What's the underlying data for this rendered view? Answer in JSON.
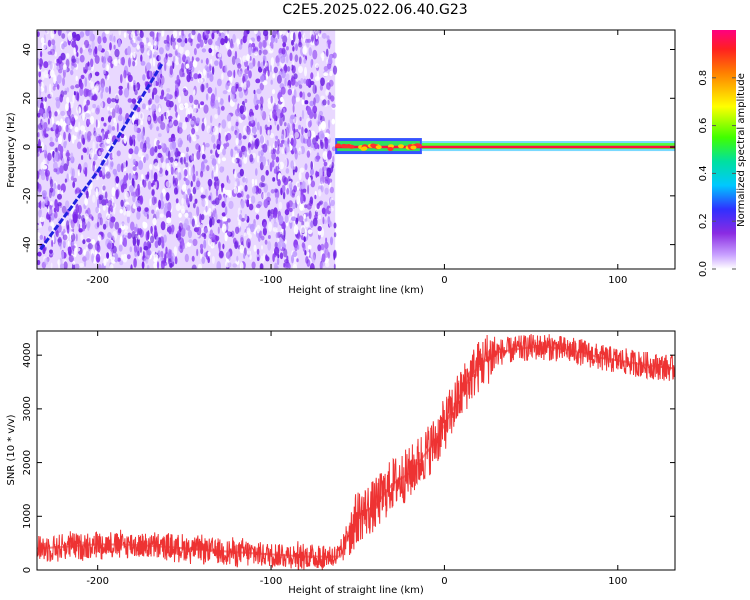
{
  "title": "C2E5.2025.022.06.40.G23",
  "chart_data": [
    {
      "type": "heatmap",
      "xlabel": "Height of straight line (km)",
      "ylabel": "Frequency (Hz)",
      "xlim": [
        -235,
        133
      ],
      "ylim": [
        -50,
        48
      ],
      "xticks": [
        -200,
        -100,
        0,
        100
      ],
      "yticks": [
        -40,
        -20,
        0,
        20,
        40
      ],
      "noise_region_x": [
        -235,
        -63
      ],
      "signal_region_x": [
        -63,
        133
      ],
      "diagonal_track": [
        {
          "x": -233,
          "y": -42
        },
        {
          "x": -227,
          "y": -36
        },
        {
          "x": -200,
          "y": -10
        },
        {
          "x": -180,
          "y": 14
        },
        {
          "x": -163,
          "y": 34
        }
      ],
      "signal_line": {
        "frequency": 0,
        "x_start": -63,
        "x_end": 133
      },
      "colorbar": {
        "label": "Normalized spectral amplitude",
        "ticks": [
          0.0,
          0.2,
          0.4,
          0.6,
          0.8
        ],
        "tick_labels": [
          "0.0",
          "0.2",
          "0.4",
          "0.6",
          "0.8"
        ],
        "range": [
          0,
          1
        ]
      },
      "grid": false
    },
    {
      "type": "line",
      "xlabel": "Height of straight line (km)",
      "ylabel": "SNR (10 * v/v)",
      "xlim": [
        -235,
        133
      ],
      "ylim": [
        0,
        4450
      ],
      "xticks": [
        -200,
        -100,
        0,
        100
      ],
      "yticks": [
        0,
        1000,
        2000,
        3000,
        4000
      ],
      "color": "#ee3333",
      "series": [
        {
          "x": [
            -235,
            -220,
            -200,
            -180,
            -160,
            -140,
            -120,
            -100,
            -80,
            -60,
            -55,
            -50,
            -45,
            -40,
            -35,
            -30,
            -25,
            -20,
            -15,
            -10,
            -5,
            0,
            5,
            10,
            15,
            20,
            25,
            30,
            40,
            50,
            60,
            70,
            80,
            90,
            100,
            110,
            120,
            133
          ],
          "y": [
            400,
            430,
            480,
            470,
            430,
            380,
            330,
            290,
            250,
            250,
            700,
            1000,
            1100,
            1200,
            1400,
            1600,
            1700,
            1800,
            2000,
            2200,
            2400,
            2700,
            3000,
            3300,
            3600,
            3800,
            3950,
            4050,
            4100,
            4150,
            4150,
            4100,
            4050,
            3950,
            3900,
            3850,
            3800,
            3750
          ]
        }
      ],
      "grid": false
    }
  ]
}
